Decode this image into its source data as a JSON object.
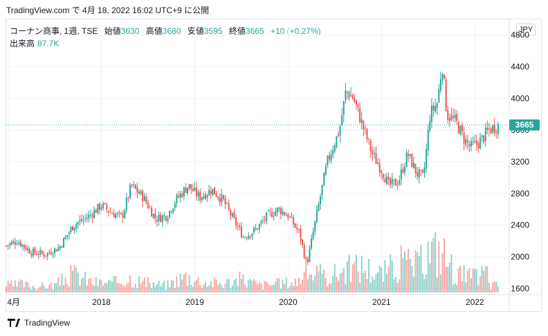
{
  "header": {
    "caption": "TradingView.com で 4月 18, 2022 16:02 UTC+9 に公開"
  },
  "legend": {
    "symbol": "コーナン商事, 1週, TSE",
    "open_label": "始値",
    "open": "3630",
    "high_label": "高値",
    "high": "3680",
    "low_label": "安値",
    "low": "3595",
    "close_label": "終値",
    "close": "3665",
    "change": "+10 (+0.27%)",
    "volume_label": "出来高",
    "volume": "87.7K"
  },
  "currency_button": "JPY",
  "footer": {
    "brand": "TradingView"
  },
  "colors": {
    "up": "#26a69a",
    "down": "#ef5350",
    "price_line": "#26a69a"
  },
  "chart_data": {
    "type": "candlestick",
    "interval": "weekly",
    "y_axis": {
      "min": 1600,
      "max": 4800,
      "ticks": [
        "1600",
        "2000",
        "2400",
        "2800",
        "3200",
        "3600",
        "4000",
        "4400",
        "4800"
      ]
    },
    "x_axis": {
      "start": 2016.98,
      "end": 2022.25,
      "labels": [
        {
          "t": 2017.0,
          "label": "4月"
        },
        {
          "t": 2018.0,
          "label": "2018"
        },
        {
          "t": 2019.0,
          "label": "2019"
        },
        {
          "t": 2020.0,
          "label": "2020"
        },
        {
          "t": 2021.0,
          "label": "2021"
        },
        {
          "t": 2022.0,
          "label": "2022"
        }
      ]
    },
    "last_price": "3665",
    "close_series": [
      {
        "t": 2016.98,
        "v": 2140
      },
      {
        "t": 2017.1,
        "v": 2200
      },
      {
        "t": 2017.25,
        "v": 2060
      },
      {
        "t": 2017.4,
        "v": 2030
      },
      {
        "t": 2017.55,
        "v": 2120
      },
      {
        "t": 2017.7,
        "v": 2400
      },
      {
        "t": 2017.85,
        "v": 2500
      },
      {
        "t": 2018.0,
        "v": 2650
      },
      {
        "t": 2018.1,
        "v": 2560
      },
      {
        "t": 2018.22,
        "v": 2500
      },
      {
        "t": 2018.32,
        "v": 2900
      },
      {
        "t": 2018.45,
        "v": 2750
      },
      {
        "t": 2018.58,
        "v": 2480
      },
      {
        "t": 2018.7,
        "v": 2520
      },
      {
        "t": 2018.8,
        "v": 2720
      },
      {
        "t": 2018.93,
        "v": 2900
      },
      {
        "t": 2019.05,
        "v": 2750
      },
      {
        "t": 2019.18,
        "v": 2850
      },
      {
        "t": 2019.3,
        "v": 2720
      },
      {
        "t": 2019.4,
        "v": 2500
      },
      {
        "t": 2019.52,
        "v": 2250
      },
      {
        "t": 2019.65,
        "v": 2340
      },
      {
        "t": 2019.78,
        "v": 2520
      },
      {
        "t": 2019.9,
        "v": 2600
      },
      {
        "t": 2020.0,
        "v": 2520
      },
      {
        "t": 2020.12,
        "v": 2300
      },
      {
        "t": 2020.2,
        "v": 1900
      },
      {
        "t": 2020.3,
        "v": 2500
      },
      {
        "t": 2020.42,
        "v": 3200
      },
      {
        "t": 2020.55,
        "v": 3600
      },
      {
        "t": 2020.62,
        "v": 4100
      },
      {
        "t": 2020.7,
        "v": 4000
      },
      {
        "t": 2020.8,
        "v": 3650
      },
      {
        "t": 2020.9,
        "v": 3300
      },
      {
        "t": 2021.0,
        "v": 3100
      },
      {
        "t": 2021.08,
        "v": 2900
      },
      {
        "t": 2021.18,
        "v": 2950
      },
      {
        "t": 2021.28,
        "v": 3300
      },
      {
        "t": 2021.38,
        "v": 3050
      },
      {
        "t": 2021.45,
        "v": 3000
      },
      {
        "t": 2021.52,
        "v": 3800
      },
      {
        "t": 2021.6,
        "v": 3950
      },
      {
        "t": 2021.65,
        "v": 4450
      },
      {
        "t": 2021.7,
        "v": 3800
      },
      {
        "t": 2021.8,
        "v": 3700
      },
      {
        "t": 2021.88,
        "v": 3500
      },
      {
        "t": 2021.95,
        "v": 3380
      },
      {
        "t": 2022.05,
        "v": 3450
      },
      {
        "t": 2022.15,
        "v": 3600
      },
      {
        "t": 2022.25,
        "v": 3665
      }
    ],
    "volume_series": [
      {
        "t": 2017.1,
        "v": 0.12
      },
      {
        "t": 2017.3,
        "v": 0.08
      },
      {
        "t": 2017.5,
        "v": 0.1
      },
      {
        "t": 2017.7,
        "v": 0.25
      },
      {
        "t": 2017.9,
        "v": 0.14
      },
      {
        "t": 2018.1,
        "v": 0.12
      },
      {
        "t": 2018.3,
        "v": 0.2
      },
      {
        "t": 2018.5,
        "v": 0.12
      },
      {
        "t": 2018.7,
        "v": 0.1
      },
      {
        "t": 2018.9,
        "v": 0.22
      },
      {
        "t": 2019.1,
        "v": 0.14
      },
      {
        "t": 2019.3,
        "v": 0.12
      },
      {
        "t": 2019.5,
        "v": 0.18
      },
      {
        "t": 2019.7,
        "v": 0.1
      },
      {
        "t": 2019.9,
        "v": 0.12
      },
      {
        "t": 2020.1,
        "v": 0.15
      },
      {
        "t": 2020.2,
        "v": 0.3
      },
      {
        "t": 2020.4,
        "v": 0.2
      },
      {
        "t": 2020.6,
        "v": 0.3
      },
      {
        "t": 2020.8,
        "v": 0.35
      },
      {
        "t": 2021.0,
        "v": 0.25
      },
      {
        "t": 2021.2,
        "v": 0.4
      },
      {
        "t": 2021.4,
        "v": 0.35
      },
      {
        "t": 2021.5,
        "v": 0.55
      },
      {
        "t": 2021.65,
        "v": 0.55
      },
      {
        "t": 2021.8,
        "v": 0.25
      },
      {
        "t": 2022.0,
        "v": 0.2
      },
      {
        "t": 2022.15,
        "v": 0.3
      }
    ]
  }
}
